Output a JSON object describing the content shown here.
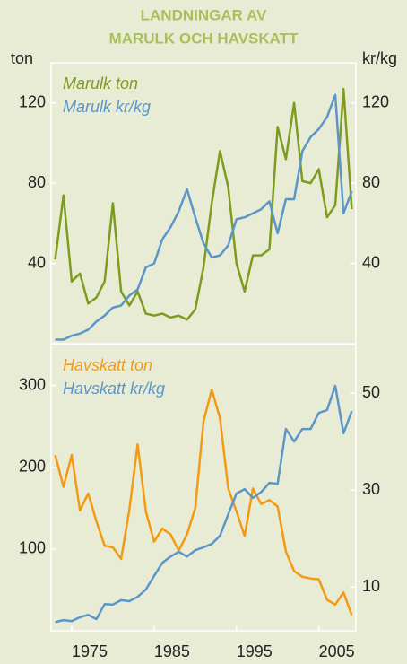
{
  "chart_data": [
    {
      "type": "line",
      "title": [
        "LANDNINGAR AV",
        "MARULK OCH HAVSKATT"
      ],
      "ylabel": "ton",
      "y2label": "kr/kg",
      "x": [
        1973,
        1974,
        1975,
        1976,
        1977,
        1978,
        1979,
        1980,
        1981,
        1982,
        1983,
        1984,
        1985,
        1986,
        1987,
        1988,
        1989,
        1990,
        1991,
        1992,
        1993,
        1994,
        1995,
        1996,
        1997,
        1998,
        1999,
        2000,
        2001,
        2002,
        2003,
        2004,
        2005,
        2006,
        2007,
        2008,
        2009
      ],
      "xlim": [
        1972.5,
        2009.5
      ],
      "ylim": [
        0,
        140
      ],
      "yticks": [
        40,
        80,
        120
      ],
      "y2lim": [
        0,
        140
      ],
      "y2ticks": [
        40,
        80,
        120
      ],
      "legend": "upper left",
      "series": [
        {
          "name": "Marulk ton",
          "color": "#7d9c1f",
          "values": [
            42,
            74,
            31,
            35,
            20,
            23,
            31,
            70,
            26,
            19,
            26,
            15,
            14,
            15,
            13,
            14,
            12,
            17,
            38,
            70,
            96,
            78,
            40,
            26,
            44,
            44,
            47,
            108,
            92,
            120,
            81,
            80,
            87,
            63,
            69,
            127,
            67
          ]
        },
        {
          "name": "Marulk kr/kg",
          "color": "#5b96c9",
          "axis": "y2",
          "values": [
            2,
            2,
            4,
            5,
            7,
            11,
            14,
            18,
            19,
            24,
            27,
            38,
            40,
            52,
            58,
            66,
            77,
            63,
            50,
            43,
            44,
            49,
            62,
            63,
            65,
            67,
            71,
            55,
            72,
            72,
            96,
            103,
            107,
            113,
            124,
            65,
            76
          ]
        }
      ]
    },
    {
      "type": "line",
      "x": [
        1973,
        1974,
        1975,
        1976,
        1977,
        1978,
        1979,
        1980,
        1981,
        1982,
        1983,
        1984,
        1985,
        1986,
        1987,
        1988,
        1989,
        1990,
        1991,
        1992,
        1993,
        1994,
        1995,
        1996,
        1997,
        1998,
        1999,
        2000,
        2001,
        2002,
        2003,
        2004,
        2005,
        2006,
        2007,
        2008,
        2009
      ],
      "xlim": [
        1972.5,
        2009.5
      ],
      "xticks": [
        1975,
        1985,
        1995,
        2005
      ],
      "ylim": [
        0,
        350
      ],
      "yticks": [
        100,
        200,
        300
      ],
      "y2lim": [
        1,
        60
      ],
      "y2ticks": [
        10,
        30,
        50
      ],
      "legend": "upper left",
      "series": [
        {
          "name": "Havskatt ton",
          "color": "#f29a16",
          "values": [
            215,
            176,
            215,
            147,
            168,
            134,
            104,
            102,
            88,
            148,
            228,
            146,
            109,
            125,
            118,
            98,
            118,
            150,
            256,
            295,
            260,
            174,
            146,
            116,
            174,
            155,
            160,
            152,
            97,
            73,
            66,
            64,
            63,
            38,
            32,
            47,
            19
          ]
        },
        {
          "name": "Havskatt kr/kg",
          "color": "#5b96c9",
          "axis": "y2",
          "values": [
            2.8,
            3.2,
            3.0,
            3.8,
            4.3,
            3.4,
            6.5,
            6.4,
            7.3,
            7.1,
            8.0,
            9.5,
            12.3,
            15.0,
            16.3,
            17.3,
            16.3,
            17.6,
            18.2,
            18.9,
            20.6,
            25.0,
            29.3,
            30.2,
            28.4,
            29.6,
            31.5,
            31.3,
            42.6,
            40.0,
            42.6,
            42.6,
            45.9,
            46.5,
            51.5,
            41.7,
            46.3
          ]
        }
      ]
    }
  ]
}
